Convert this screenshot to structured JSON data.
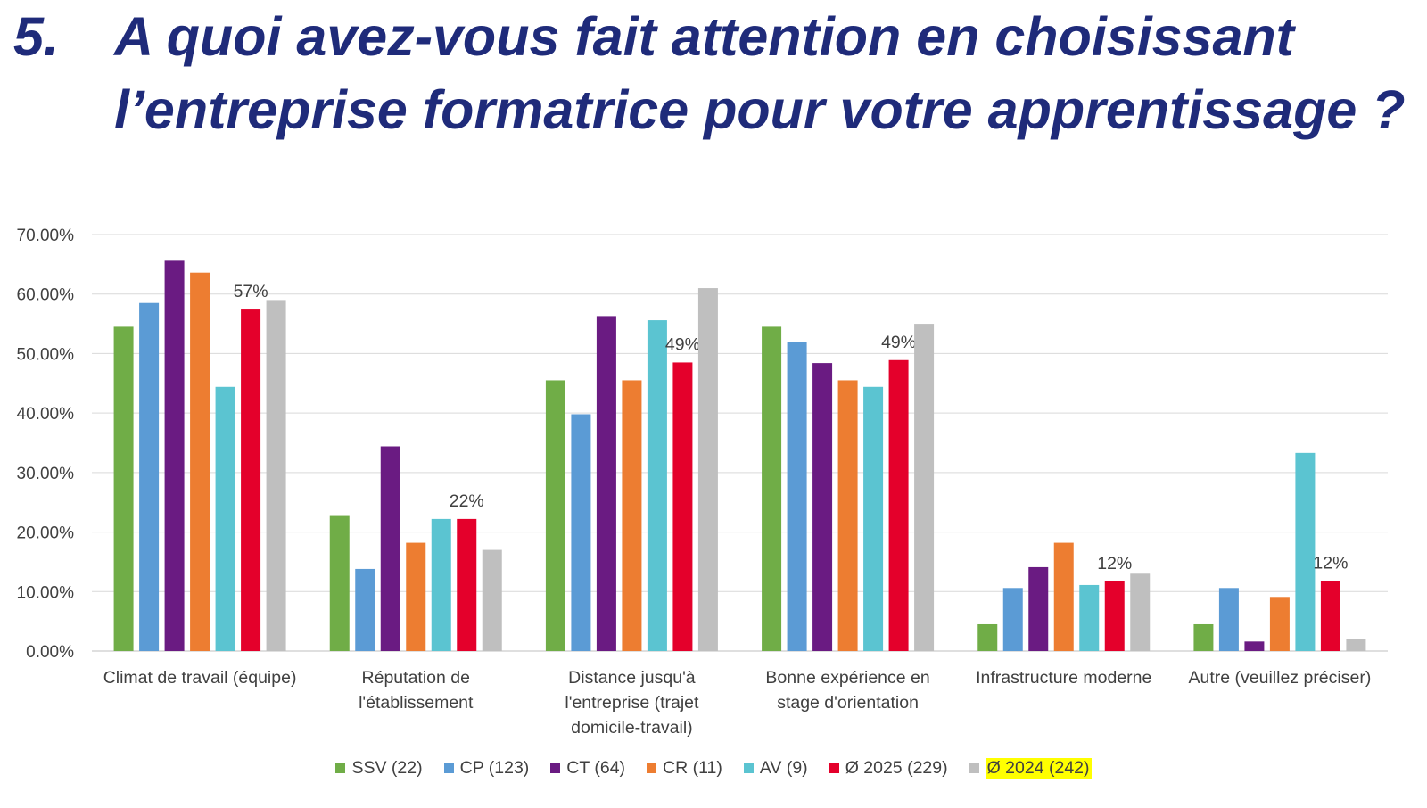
{
  "title": {
    "number": "5.",
    "text": "A quoi avez-vous fait attention en choisissant l’entreprise formatrice pour votre apprentissage ?"
  },
  "chart_data": {
    "type": "bar",
    "title": "",
    "xlabel": "",
    "ylabel": "",
    "ylim": [
      0,
      0.7
    ],
    "yticks": [
      "0.00%",
      "10.00%",
      "20.00%",
      "30.00%",
      "40.00%",
      "50.00%",
      "60.00%",
      "70.00%"
    ],
    "grid": true,
    "legend_position": "bottom",
    "categories": [
      [
        "Climat de travail (équipe)"
      ],
      [
        "Réputation de",
        "l'établissement"
      ],
      [
        "Distance jusqu'à",
        "l'entreprise (trajet",
        "domicile-travail)"
      ],
      [
        "Bonne expérience en",
        "stage d'orientation"
      ],
      [
        "Infrastructure moderne"
      ],
      [
        "Autre (veuillez préciser)"
      ]
    ],
    "series": [
      {
        "name": "SSV (22)",
        "color": "#70ad47",
        "values": [
          0.545,
          0.227,
          0.455,
          0.545,
          0.045,
          0.045
        ]
      },
      {
        "name": "CP (123)",
        "color": "#5b9bd5",
        "values": [
          0.585,
          0.138,
          0.398,
          0.52,
          0.106,
          0.106
        ]
      },
      {
        "name": "CT (64)",
        "color": "#6a1b82",
        "values": [
          0.656,
          0.344,
          0.563,
          0.484,
          0.141,
          0.016
        ]
      },
      {
        "name": "CR (11)",
        "color": "#ed7d31",
        "values": [
          0.636,
          0.182,
          0.455,
          0.455,
          0.182,
          0.091
        ]
      },
      {
        "name": "AV (9)",
        "color": "#5bc4d1",
        "values": [
          0.444,
          0.222,
          0.556,
          0.444,
          0.111,
          0.333
        ]
      },
      {
        "name": "Ø 2025 (229)",
        "color": "#e4002b",
        "values": [
          0.574,
          0.222,
          0.485,
          0.489,
          0.117,
          0.118
        ],
        "data_labels": [
          "57%",
          "22%",
          "49%",
          "49%",
          "12%",
          "12%"
        ]
      },
      {
        "name": "Ø 2024 (242)",
        "color": "#bfbfbf",
        "values": [
          0.59,
          0.17,
          0.61,
          0.55,
          0.13,
          0.02
        ],
        "highlight": "#ffff00"
      }
    ]
  }
}
